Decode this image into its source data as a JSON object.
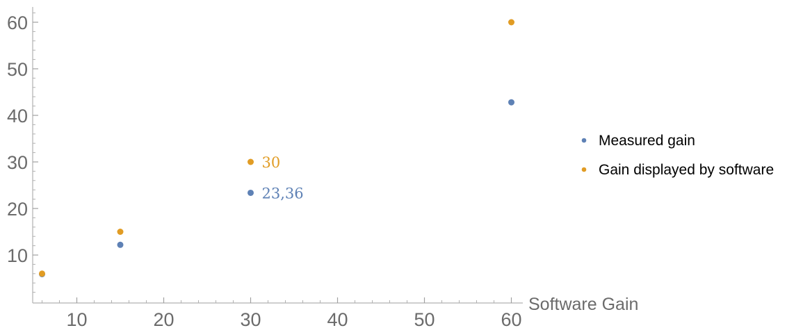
{
  "chart_data": {
    "type": "scatter",
    "xlabel": "Software Gain",
    "ylabel": "",
    "xlim": [
      5,
      61
    ],
    "ylim": [
      0,
      63
    ],
    "x_ticks": [
      10,
      20,
      30,
      40,
      50,
      60
    ],
    "y_ticks": [
      10,
      20,
      30,
      40,
      50,
      60
    ],
    "grid": false,
    "legend_position": "right",
    "series": [
      {
        "name": "Measured gain",
        "color": "#5e81b5",
        "points": [
          {
            "x": 6,
            "y": 5.9
          },
          {
            "x": 15,
            "y": 12.2
          },
          {
            "x": 30,
            "y": 23.36,
            "label": "23,36"
          },
          {
            "x": 60,
            "y": 42.8
          }
        ]
      },
      {
        "name": "Gain displayed by software",
        "color": "#e19c24",
        "points": [
          {
            "x": 6,
            "y": 6
          },
          {
            "x": 15,
            "y": 15
          },
          {
            "x": 30,
            "y": 30,
            "label": "30"
          },
          {
            "x": 60,
            "y": 60
          }
        ]
      }
    ]
  }
}
